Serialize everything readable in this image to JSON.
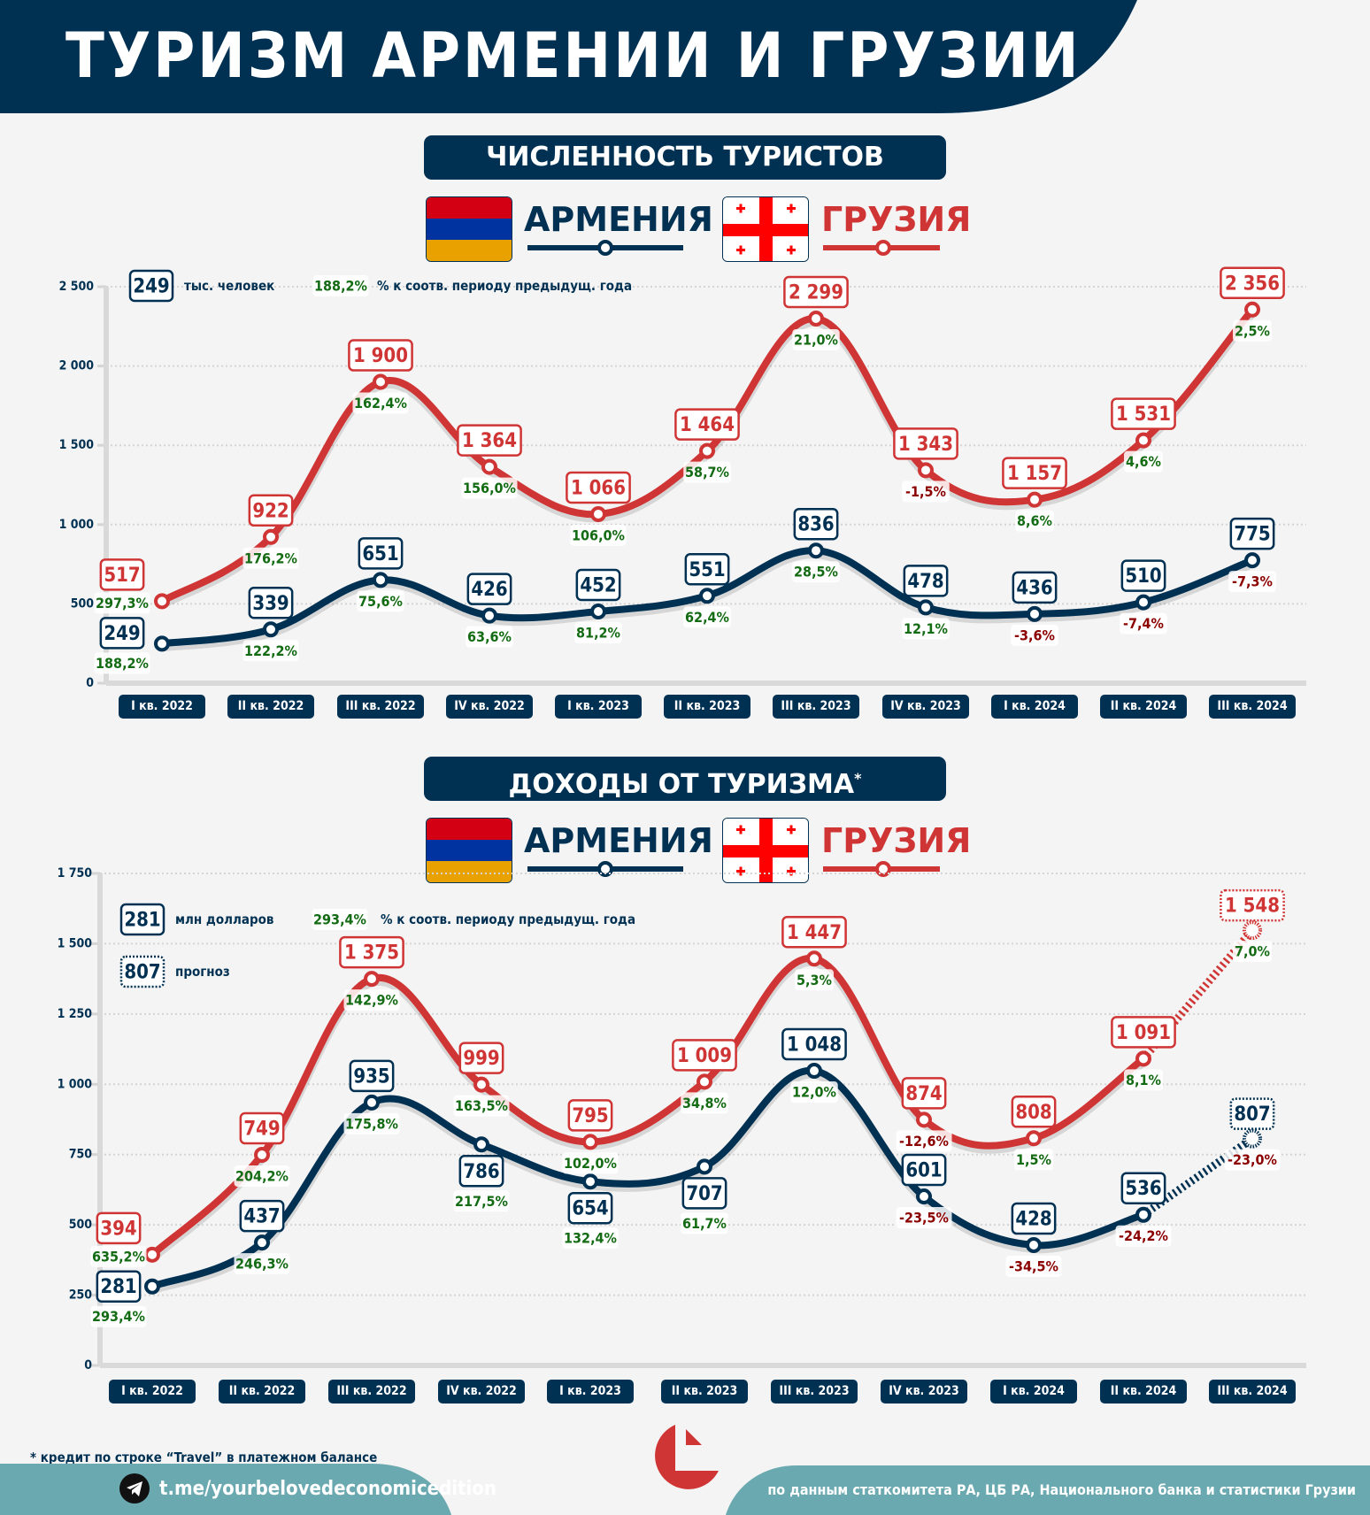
{
  "title": "ТУРИЗМ АРМЕНИИ И ГРУЗИИ",
  "colors": {
    "armenia": "#003052",
    "georgia": "#d03535",
    "positive": "#136b13",
    "negative": "#8b0000",
    "header_bg": "#003052",
    "footer_bg": "#6aa9b0",
    "background": "#f4f4f4"
  },
  "countries": {
    "armenia": "АРМЕНИЯ",
    "georgia": "ГРУЗИЯ"
  },
  "chart_data": [
    {
      "type": "line",
      "title": "ЧИСЛЕННОСТЬ ТУРИСТОВ",
      "unit_example_value": "249",
      "unit_label": "тыс. человек",
      "pct_example_value": "188,2%",
      "pct_label": "% к соотв. периоду предыдущ. года",
      "categories": [
        "I кв. 2022",
        "II кв. 2022",
        "III кв. 2022",
        "IV кв. 2022",
        "I кв. 2023",
        "II кв. 2023",
        "III кв. 2023",
        "IV кв. 2023",
        "I кв. 2024",
        "II кв. 2024",
        "III кв. 2024"
      ],
      "ylim": [
        0,
        2500
      ],
      "yticks": [
        0,
        500,
        1000,
        1500,
        2000,
        2500
      ],
      "ytick_labels": [
        "0",
        "500",
        "1 000",
        "1 500",
        "2 000",
        "2 500"
      ],
      "grid": true,
      "series": [
        {
          "name": "АРМЕНИЯ",
          "values": [
            249,
            339,
            651,
            426,
            452,
            551,
            836,
            478,
            436,
            510,
            775
          ],
          "labels": [
            "249",
            "339",
            "651",
            "426",
            "452",
            "551",
            "836",
            "478",
            "436",
            "510",
            "775"
          ],
          "yoy": [
            "188,2%",
            "122,2%",
            "75,6%",
            "63,6%",
            "81,2%",
            "62,4%",
            "28,5%",
            "12,1%",
            "-3,6%",
            "-7,4%",
            "-7,3%"
          ],
          "forecast_from": null
        },
        {
          "name": "ГРУЗИЯ",
          "values": [
            517,
            922,
            1900,
            1364,
            1066,
            1464,
            2299,
            1343,
            1157,
            1531,
            2356
          ],
          "labels": [
            "517",
            "922",
            "1 900",
            "1 364",
            "1 066",
            "1 464",
            "2 299",
            "1 343",
            "1 157",
            "1 531",
            "2 356"
          ],
          "yoy": [
            "297,3%",
            "176,2%",
            "162,4%",
            "156,0%",
            "106,0%",
            "58,7%",
            "21,0%",
            "-1,5%",
            "8,6%",
            "4,6%",
            "2,5%"
          ],
          "forecast_from": null
        }
      ]
    },
    {
      "type": "line",
      "title": "ДОХОДЫ ОТ ТУРИЗМА",
      "title_mark": "*",
      "unit_example_value": "281",
      "unit_label": "млн долларов",
      "pct_example_value": "293,4%",
      "pct_label": "% к соотв. периоду предыдущ. года",
      "forecast_example_value": "807",
      "forecast_label": "прогноз",
      "categories": [
        "I кв. 2022",
        "II кв. 2022",
        "III кв. 2022",
        "IV кв. 2022",
        "I кв. 2023",
        "II кв. 2023",
        "III кв. 2023",
        "IV кв. 2023",
        "I кв. 2024",
        "II кв. 2024",
        "III кв. 2024"
      ],
      "ylim": [
        0,
        1750
      ],
      "yticks": [
        0,
        250,
        500,
        750,
        1000,
        1250,
        1500,
        1750
      ],
      "ytick_labels": [
        "0",
        "250",
        "500",
        "750",
        "1 000",
        "1 250",
        "1 500",
        "1 750"
      ],
      "grid": true,
      "series": [
        {
          "name": "АРМЕНИЯ",
          "values": [
            281,
            437,
            935,
            786,
            654,
            707,
            1048,
            601,
            428,
            536,
            807
          ],
          "labels": [
            "281",
            "437",
            "935",
            "786",
            "654",
            "707",
            "1 048",
            "601",
            "428",
            "536",
            "807"
          ],
          "yoy": [
            "293,4%",
            "246,3%",
            "175,8%",
            "217,5%",
            "132,4%",
            "61,7%",
            "12,0%",
            "-23,5%",
            "-34,5%",
            "-24,2%",
            "-23,0%"
          ],
          "forecast_from": 10
        },
        {
          "name": "ГРУЗИЯ",
          "values": [
            394,
            749,
            1375,
            999,
            795,
            1009,
            1447,
            874,
            808,
            1091,
            1548
          ],
          "labels": [
            "394",
            "749",
            "1 375",
            "999",
            "795",
            "1 009",
            "1 447",
            "874",
            "808",
            "1 091",
            "1 548"
          ],
          "yoy": [
            "635,2%",
            "204,2%",
            "142,9%",
            "163,5%",
            "102,0%",
            "34,8%",
            "5,3%",
            "-12,6%",
            "1,5%",
            "8,1%",
            "7,0%"
          ],
          "forecast_from": 10
        }
      ]
    }
  ],
  "footnote": "* кредит по строке “Travel” в платежном балансе",
  "footer": {
    "telegram_link": "t.me/yourbelovedeconomicedition",
    "source": "по данным статкомитета РА, ЦБ РА, Национального банка и статистики Грузии"
  }
}
